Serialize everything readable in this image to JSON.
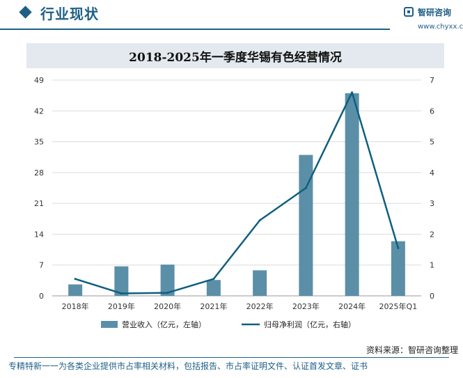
{
  "header": {
    "title": "行业现状",
    "logo_name": "智研咨询",
    "logo_url": "www.chyxx.com"
  },
  "colors": {
    "brand": "#1f5f86",
    "bar": "#5b8fa8",
    "line": "#0f5f7e",
    "grid": "#dcdcdc",
    "title_bg": "#e3e9ef"
  },
  "chart_data": {
    "type": "bar",
    "title": "2018-2025年一季度华锡有色经营情况",
    "categories": [
      "2018年",
      "2019年",
      "2020年",
      "2021年",
      "2022年",
      "2023年",
      "2024年",
      "2025年Q1"
    ],
    "series": [
      {
        "name": "营业收入（亿元，左轴）",
        "type": "bar",
        "axis": "left",
        "values": [
          2.6,
          6.7,
          7.1,
          3.6,
          5.8,
          32.0,
          46.0,
          12.4
        ]
      },
      {
        "name": "归母净利润（亿元，右轴）",
        "type": "line",
        "axis": "right",
        "values": [
          0.55,
          0.08,
          0.1,
          0.55,
          2.45,
          3.5,
          6.6,
          1.55
        ]
      }
    ],
    "left_axis": {
      "ylim": [
        0,
        49
      ],
      "ticks": [
        "0",
        "7",
        "14",
        "21",
        "28",
        "35",
        "42",
        "49"
      ]
    },
    "right_axis": {
      "ylim": [
        0,
        7
      ],
      "ticks": [
        "0",
        "1",
        "2",
        "3",
        "4",
        "5",
        "6",
        "7"
      ]
    },
    "grid": true,
    "legend_position": "bottom"
  },
  "footer": {
    "source": "资料来源：智研咨询整理",
    "note": "专精特新一一为各类企业提供市占率相关材料，包括报告、市占率证明文件、认证首发文章、证书"
  }
}
